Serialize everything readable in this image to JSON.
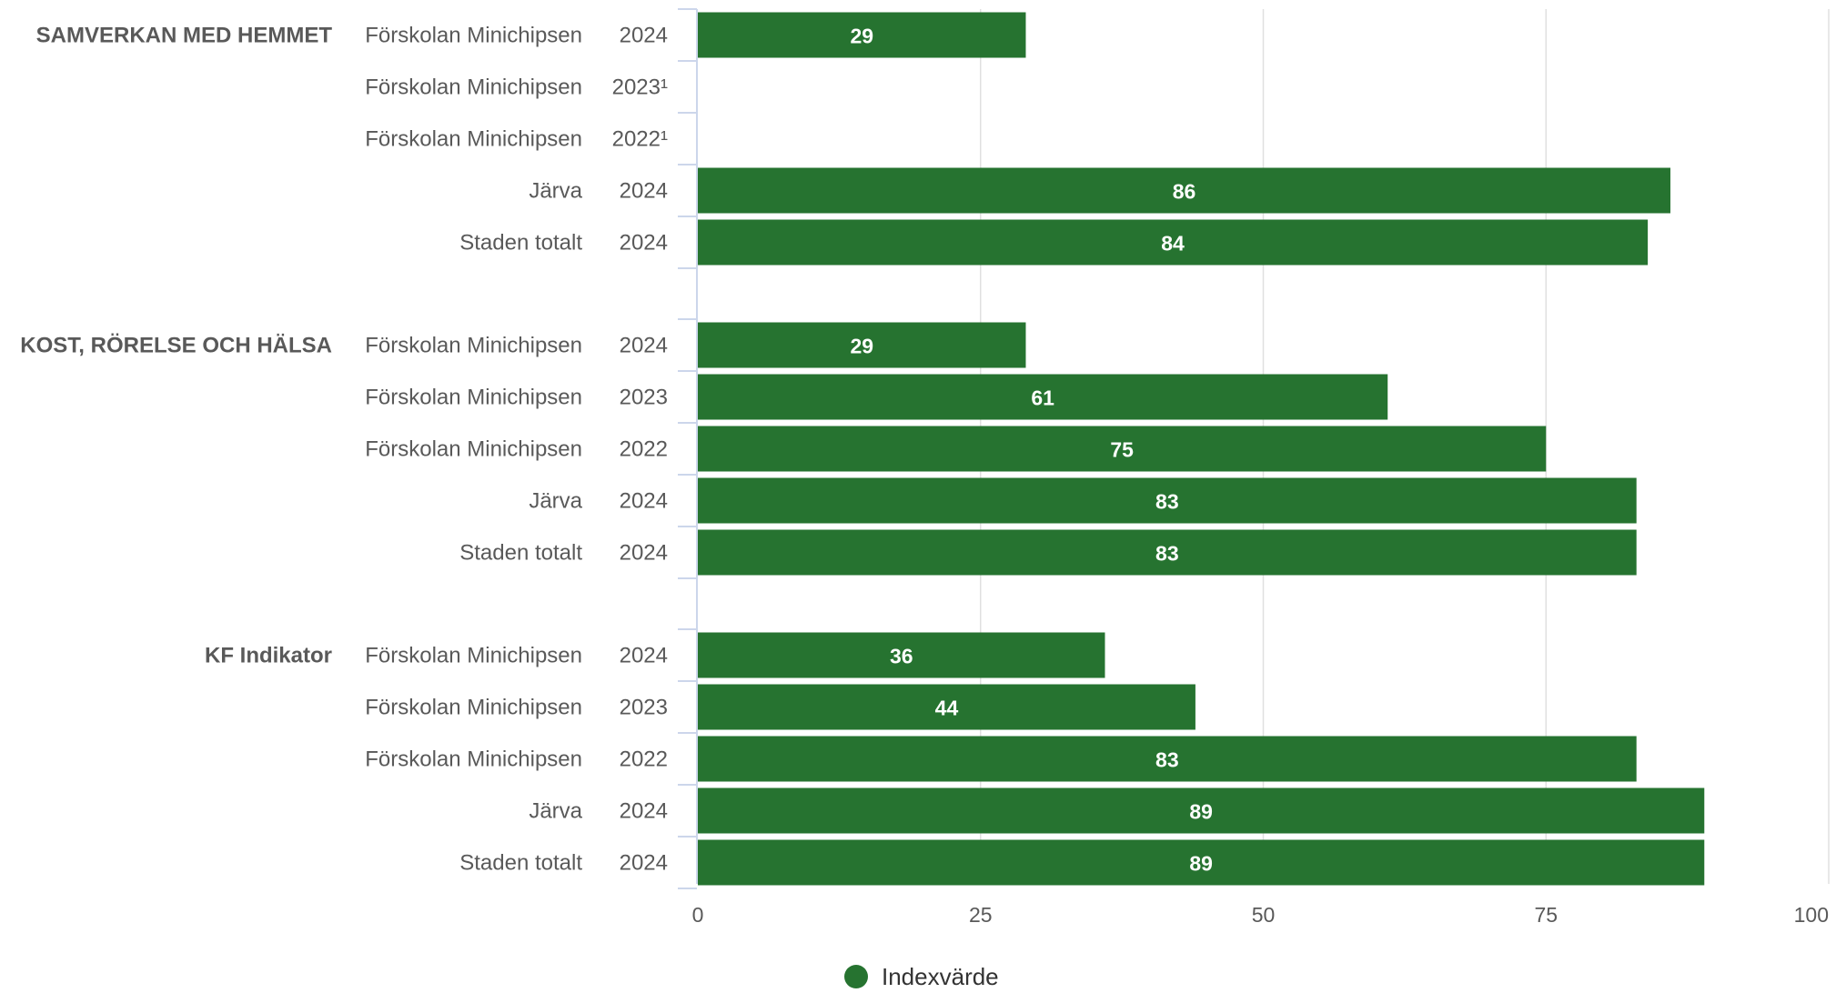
{
  "chart_data": {
    "type": "bar",
    "orientation": "horizontal",
    "groups": [
      {
        "label": "SAMVERKAN MED HEMMET",
        "rows": [
          {
            "unit": "Förskolan Minichipsen",
            "year": "2024",
            "value": 29,
            "value_label": "29"
          },
          {
            "unit": "Förskolan Minichipsen",
            "year": "2023¹",
            "value": null,
            "value_label": ""
          },
          {
            "unit": "Förskolan Minichipsen",
            "year": "2022¹",
            "value": null,
            "value_label": ""
          },
          {
            "unit": "Järva",
            "year": "2024",
            "value": 86,
            "value_label": "86"
          },
          {
            "unit": "Staden totalt",
            "year": "2024",
            "value": 84,
            "value_label": "84"
          }
        ]
      },
      {
        "label": "KOST, RÖRELSE OCH HÄLSA",
        "rows": [
          {
            "unit": "Förskolan Minichipsen",
            "year": "2024",
            "value": 29,
            "value_label": "29"
          },
          {
            "unit": "Förskolan Minichipsen",
            "year": "2023",
            "value": 61,
            "value_label": "61"
          },
          {
            "unit": "Förskolan Minichipsen",
            "year": "2022",
            "value": 75,
            "value_label": "75"
          },
          {
            "unit": "Järva",
            "year": "2024",
            "value": 83,
            "value_label": "83"
          },
          {
            "unit": "Staden totalt",
            "year": "2024",
            "value": 83,
            "value_label": "83"
          }
        ]
      },
      {
        "label": "KF Indikator",
        "rows": [
          {
            "unit": "Förskolan Minichipsen",
            "year": "2024",
            "value": 36,
            "value_label": "36"
          },
          {
            "unit": "Förskolan Minichipsen",
            "year": "2023",
            "value": 44,
            "value_label": "44"
          },
          {
            "unit": "Förskolan Minichipsen",
            "year": "2022",
            "value": 83,
            "value_label": "83"
          },
          {
            "unit": "Järva",
            "year": "2024",
            "value": 89,
            "value_label": "89"
          },
          {
            "unit": "Staden totalt",
            "year": "2024",
            "value": 89,
            "value_label": "89"
          }
        ]
      }
    ],
    "xlim": [
      0,
      100
    ],
    "xticks": [
      0,
      25,
      50,
      75,
      100
    ],
    "grid": true,
    "series": [
      {
        "name": "Indexvärde",
        "color": "#267330"
      }
    ],
    "legend": "bottom-center"
  }
}
